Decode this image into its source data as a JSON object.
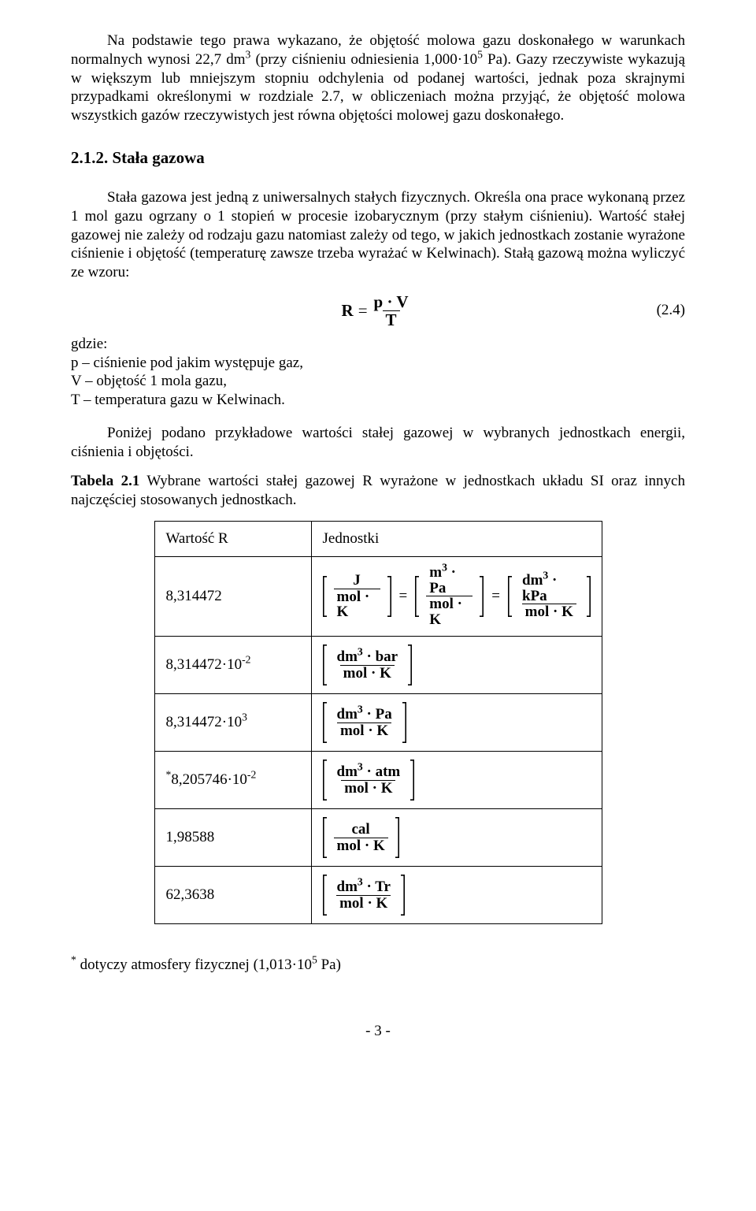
{
  "paragraphs": {
    "p1_a": "Na podstawie tego prawa wykazano, że objętość molowa gazu doskonałego w warunkach normalnych wynosi 22,7 dm",
    "p1_sup": "3",
    "p1_b": " (przy ciśnieniu odniesienia 1,000·10",
    "p1_sup2": "5",
    "p1_c": " Pa). Gazy rzeczywiste wykazują w większym lub mniejszym stopniu odchylenia od podanej wartości, jednak poza skrajnymi przypadkami określonymi w rozdziale 2.7, w obliczeniach można przyjąć, że objętość molowa wszystkich gazów rzeczywistych jest równa objętości molowej gazu doskonałego.",
    "section_title": "2.1.2. Stała gazowa",
    "p2_a": "Stała gazowa jest jedną z uniwersalnych stałych fizycznych. Określa ona prace wykonaną przez 1 mol gazu ogrzany o 1 stopień w procesie izobarycznym (przy stałym ciśnieniu). Wartość stałej gazowej nie zależy od rodzaju gazu natomiast zależy od tego, w jakich jednostkach zostanie wyrażone ciśnienie i objętość (temperaturę zawsze trzeba wyrażać w Kelwinach). Stałą gazową można wyliczyć ze wzoru:",
    "eq_R": "R",
    "eq_eqsign": "=",
    "eq_num": "p · V",
    "eq_den": "T",
    "eq_label": "(2.4)",
    "def_gdzie": "gdzie:",
    "def_p": "p – ciśnienie pod jakim występuje gaz,",
    "def_v": "V – objętość 1 mola gazu,",
    "def_t": "T – temperatura gazu w Kelwinach.",
    "p3": "Poniżej podano przykładowe wartości stałej gazowej w wybranych jednostkach energii, ciśnienia i objętości.",
    "tab_caption_a": "Tabela 2.1",
    "tab_caption_b": " Wybrane wartości stałej gazowej R wyrażone w jednostkach układu SI oraz innych najczęściej stosowanych jednostkach."
  },
  "table": {
    "header_val": "Wartość R",
    "header_unit": "Jednostki",
    "rows": [
      {
        "value": "8,314472",
        "units": [
          {
            "num": "J",
            "den": "mol · K"
          },
          {
            "num": "m³ · Pa",
            "den": "mol · K"
          },
          {
            "num": "dm³ · kPa",
            "den": "mol · K"
          }
        ],
        "joined": true
      },
      {
        "value": "8,314472·10⁻²",
        "units": [
          {
            "num": "dm³ · bar",
            "den": "mol · K"
          }
        ]
      },
      {
        "value": "8,314472·10³",
        "units": [
          {
            "num": "dm³ · Pa",
            "den": "mol · K"
          }
        ]
      },
      {
        "value_prefix": "*",
        "value": "8,205746·10⁻²",
        "units": [
          {
            "num": "dm³ · atm",
            "den": "mol · K"
          }
        ]
      },
      {
        "value": "1,98588",
        "units": [
          {
            "num": "cal",
            "den": "mol · K"
          }
        ]
      },
      {
        "value": "62,3638",
        "units": [
          {
            "num": "dm³ · Tr",
            "den": "mol · K"
          }
        ]
      }
    ]
  },
  "footnote_a": "*",
  "footnote_b": " dotyczy atmosfery fizycznej (1,013·10",
  "footnote_sup": "5",
  "footnote_c": " Pa)",
  "page_number": "- 3 -",
  "colors": {
    "text": "#000000",
    "bg": "#ffffff",
    "border": "#000000"
  }
}
